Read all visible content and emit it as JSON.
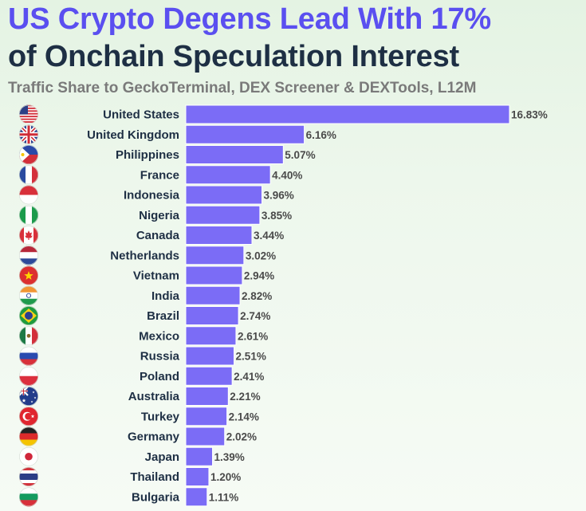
{
  "title_line1": "US Crypto Degens Lead With 17%",
  "title_line2": "of Onchain Speculation Interest",
  "subtitle": "Traffic Share to GeckoTerminal, DEX Screener & DEXTools, L12M",
  "colors": {
    "bar": "#7b6cf6",
    "title_accent": "#5a4ff0",
    "title_dark": "#1e2f44",
    "background": "#e4f3e3"
  },
  "chart_data": {
    "type": "bar",
    "orientation": "horizontal",
    "title": "US Crypto Degens Lead With 17% of Onchain Speculation Interest",
    "subtitle": "Traffic Share to GeckoTerminal, DEX Screener & DEXTools, L12M",
    "value_suffix": "%",
    "categories": [
      "United States",
      "United Kingdom",
      "Philippines",
      "France",
      "Indonesia",
      "Nigeria",
      "Canada",
      "Netherlands",
      "Vietnam",
      "India",
      "Brazil",
      "Mexico",
      "Russia",
      "Poland",
      "Australia",
      "Turkey",
      "Germany",
      "Japan",
      "Thailand",
      "Bulgaria"
    ],
    "values": [
      16.83,
      6.16,
      5.07,
      4.4,
      3.96,
      3.85,
      3.44,
      3.02,
      2.94,
      2.82,
      2.74,
      2.61,
      2.51,
      2.41,
      2.21,
      2.14,
      2.02,
      1.39,
      1.2,
      1.11
    ],
    "value_labels": [
      "16.83%",
      "6.16%",
      "5.07%",
      "4.40%",
      "3.96%",
      "3.85%",
      "3.44%",
      "3.02%",
      "2.94%",
      "2.82%",
      "2.74%",
      "2.61%",
      "2.51%",
      "2.41%",
      "2.21%",
      "2.14%",
      "2.02%",
      "1.39%",
      "1.20%",
      "1.11%"
    ],
    "flag_icons": [
      "us-flag-icon",
      "uk-flag-icon",
      "philippines-flag-icon",
      "france-flag-icon",
      "indonesia-flag-icon",
      "nigeria-flag-icon",
      "canada-flag-icon",
      "netherlands-flag-icon",
      "vietnam-flag-icon",
      "india-flag-icon",
      "brazil-flag-icon",
      "mexico-flag-icon",
      "russia-flag-icon",
      "poland-flag-icon",
      "australia-flag-icon",
      "turkey-flag-icon",
      "germany-flag-icon",
      "japan-flag-icon",
      "thailand-flag-icon",
      "bulgaria-flag-icon"
    ],
    "xlim": [
      0,
      16.83
    ],
    "grid": false,
    "legend": "none"
  }
}
